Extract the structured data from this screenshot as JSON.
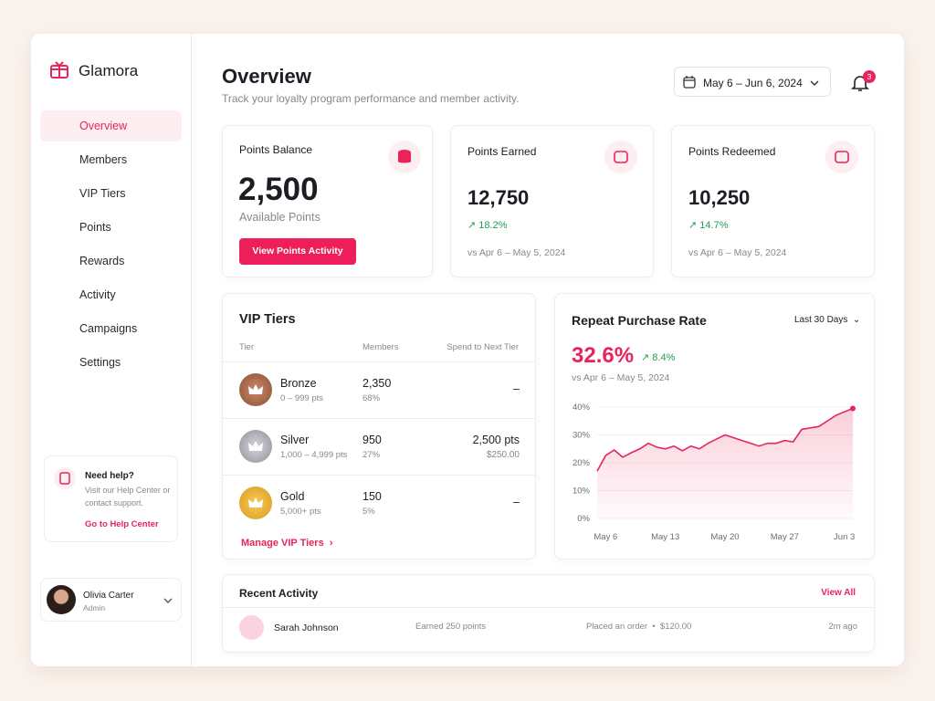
{
  "brand": "Glamora",
  "nav": [
    "Overview",
    "Members",
    "VIP Tiers",
    "Points",
    "Rewards",
    "Activity",
    "Campaigns",
    "Settings"
  ],
  "help": {
    "title": "Need help?",
    "text": "Visit our Help Center or contact support.",
    "link": "Go to Help Center"
  },
  "user": {
    "name": "Olivia Carter",
    "role": "Admin"
  },
  "header": {
    "title": "Overview",
    "subtitle": "Track your loyalty program performance and member activity.",
    "date_range": "May 6 – Jun 6, 2024",
    "notifications": "3"
  },
  "cards": [
    {
      "title": "Points Balance",
      "value": "2,500",
      "caption": "Available Points",
      "button": "View Points Activity"
    },
    {
      "title": "Points Earned",
      "value": "12,750",
      "change": "18.2%",
      "compare": "vs Apr 6 – May 5, 2024"
    },
    {
      "title": "Points Redeemed",
      "value": "10,250",
      "change": "14.7%",
      "compare": "vs Apr 6 – May 5, 2024"
    }
  ],
  "vip_tiers": {
    "title": "VIP Tiers",
    "columns": [
      "Tier",
      "Members",
      "Spend to Next Tier"
    ],
    "rows": [
      {
        "name": "Bronze",
        "range": "0 – 999 pts",
        "members": "2,350",
        "share": "68%",
        "next": "–"
      },
      {
        "name": "Silver",
        "range": "1,000 – 4,999 pts",
        "members": "950",
        "share": "27%",
        "next": "2,500 pts",
        "next_spend": "$250.00"
      },
      {
        "name": "Gold",
        "range": "5,000+ pts",
        "members": "150",
        "share": "5%",
        "next": "–"
      }
    ],
    "link": "Manage VIP Tiers"
  },
  "chart_data": {
    "type": "line",
    "title": "Repeat Purchase Rate",
    "filter": "Last 30 Days",
    "kpi": "32.6%",
    "change": "8.4%",
    "compare": "vs Apr 6 – May 5, 2024",
    "categories": [
      null,
      "May 6",
      null,
      null,
      null,
      null,
      null,
      null,
      "May 13",
      null,
      null,
      null,
      null,
      null,
      null,
      "May 20",
      null,
      null,
      null,
      null,
      null,
      null,
      "May 27",
      null,
      null,
      null,
      null,
      null,
      null,
      "Jun 3",
      null
    ],
    "values": [
      17,
      22.6,
      24.6,
      22,
      23.6,
      25,
      27,
      25.6,
      25,
      26,
      24.3,
      26,
      25,
      27,
      28.5,
      30,
      29,
      28,
      27,
      26,
      27,
      27,
      28,
      27.5,
      32,
      32.5,
      33,
      35,
      37,
      38.3,
      39.5
    ],
    "color": "#e8245a",
    "ylim": [
      0,
      40
    ],
    "yticks": [
      {
        "value": 0,
        "label": "0%"
      },
      {
        "value": 10,
        "label": "10%"
      },
      {
        "value": 20,
        "label": "20%"
      },
      {
        "value": 30,
        "label": "30%"
      },
      {
        "value": 40,
        "label": "40%"
      }
    ],
    "grid": true
  },
  "recent_activity": {
    "title": "Recent Activity",
    "link": "View All",
    "rows": [
      {
        "name": "Sarah Johnson",
        "action": "Earned 250 points",
        "detail": "Placed an order",
        "amount": "$120.00",
        "time": "2m ago"
      }
    ]
  }
}
